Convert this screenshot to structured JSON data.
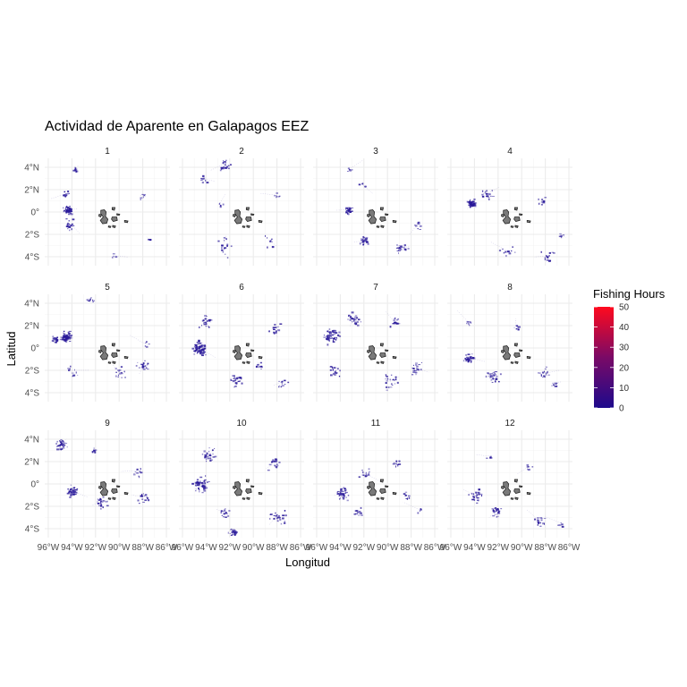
{
  "chart_data": {
    "type": "heatmap",
    "title": "Actividad de Aparente en Galapagos EEZ",
    "xlabel": "Longitud",
    "ylabel": "Latitud",
    "facet_labels": [
      "1",
      "2",
      "3",
      "4",
      "5",
      "6",
      "7",
      "8",
      "9",
      "10",
      "11",
      "12"
    ],
    "x_ticks": [
      {
        "value": -96,
        "label": "96°W"
      },
      {
        "value": -94,
        "label": "94°W"
      },
      {
        "value": -92,
        "label": "92°W"
      },
      {
        "value": -90,
        "label": "90°W"
      },
      {
        "value": -88,
        "label": "88°W"
      },
      {
        "value": -86,
        "label": "86°W"
      }
    ],
    "y_ticks": [
      {
        "value": 4,
        "label": "4°N"
      },
      {
        "value": 2,
        "label": "2°N"
      },
      {
        "value": 0,
        "label": "0°"
      },
      {
        "value": -2,
        "label": "2°S"
      },
      {
        "value": -4,
        "label": "4°S"
      }
    ],
    "xlim": [
      -96.3,
      -85.7
    ],
    "ylim": [
      -4.8,
      4.8
    ],
    "legend": {
      "title": "Fishing Hours",
      "ticks": [
        0,
        10,
        20,
        30,
        40,
        50
      ],
      "range": [
        0,
        50
      ],
      "color_low": "#1e0a8c",
      "color_high": "#ff0a1e",
      "placement": "right"
    },
    "grid": true,
    "island_fill": "#7a7a7a",
    "island_stroke": "#1a1a1a",
    "activity_color": "#2a1a9a",
    "panels": [
      {
        "label": "1",
        "clusters": [
          [
            -94.4,
            0.2,
            55,
            0.5
          ],
          [
            -93.8,
            3.8,
            12,
            0.3
          ],
          [
            -94.6,
            1.6,
            15,
            0.5
          ],
          [
            -94.2,
            -1.0,
            18,
            0.6
          ],
          [
            -88.2,
            1.5,
            6,
            0.5
          ],
          [
            -87.5,
            -2.4,
            5,
            0.3
          ],
          [
            -90.5,
            -3.9,
            4,
            0.4
          ]
        ]
      },
      {
        "label": "2",
        "clusters": [
          [
            -92.5,
            4.3,
            25,
            0.6
          ],
          [
            -94.3,
            3.0,
            10,
            0.6
          ],
          [
            -92.5,
            -3.0,
            15,
            1.2
          ],
          [
            -88.0,
            1.5,
            6,
            0.5
          ],
          [
            -88.7,
            -2.5,
            8,
            0.8
          ],
          [
            -92.8,
            0.8,
            5,
            0.4
          ]
        ]
      },
      {
        "label": "3",
        "clusters": [
          [
            -93.3,
            0.2,
            30,
            0.5
          ],
          [
            -92.0,
            -2.6,
            25,
            0.6
          ],
          [
            -89.0,
            -3.2,
            20,
            0.8
          ],
          [
            -92.2,
            2.5,
            6,
            0.5
          ],
          [
            -87.6,
            -1.3,
            8,
            0.6
          ],
          [
            -93.3,
            3.8,
            5,
            0.3
          ]
        ]
      },
      {
        "label": "4",
        "clusters": [
          [
            -94.3,
            0.8,
            60,
            0.5
          ],
          [
            -93.0,
            1.6,
            20,
            0.7
          ],
          [
            -87.8,
            -3.9,
            15,
            0.7
          ],
          [
            -88.3,
            1.0,
            8,
            0.5
          ],
          [
            -91.2,
            -3.5,
            10,
            0.8
          ],
          [
            -86.8,
            -2.0,
            5,
            0.4
          ]
        ]
      },
      {
        "label": "5",
        "clusters": [
          [
            -94.5,
            1.0,
            90,
            0.6
          ],
          [
            -95.5,
            0.8,
            20,
            0.4
          ],
          [
            -92.5,
            4.3,
            12,
            0.4
          ],
          [
            -88.0,
            -1.7,
            20,
            1.0
          ],
          [
            -90.0,
            -2.2,
            15,
            0.8
          ],
          [
            -94.0,
            -2.0,
            10,
            0.8
          ],
          [
            -87.7,
            0.3,
            5,
            0.4
          ]
        ]
      },
      {
        "label": "6",
        "clusters": [
          [
            -94.6,
            0.0,
            80,
            0.8
          ],
          [
            -94.0,
            2.5,
            25,
            0.8
          ],
          [
            -91.5,
            -2.8,
            25,
            0.9
          ],
          [
            -88.3,
            1.8,
            15,
            0.8
          ],
          [
            -87.5,
            -3.0,
            12,
            0.7
          ],
          [
            -89.5,
            -1.5,
            10,
            0.6
          ]
        ]
      },
      {
        "label": "7",
        "clusters": [
          [
            -94.8,
            1.2,
            60,
            0.9
          ],
          [
            -93.0,
            2.6,
            30,
            0.9
          ],
          [
            -89.5,
            2.4,
            15,
            0.8
          ],
          [
            -89.8,
            -3.0,
            25,
            1.0
          ],
          [
            -87.8,
            -1.8,
            20,
            0.8
          ],
          [
            -94.5,
            -2.0,
            20,
            0.8
          ]
        ]
      },
      {
        "label": "8",
        "clusters": [
          [
            -94.5,
            -0.9,
            40,
            0.5
          ],
          [
            -92.5,
            -2.5,
            30,
            0.8
          ],
          [
            -88.2,
            -2.3,
            15,
            0.8
          ],
          [
            -87.3,
            -3.2,
            8,
            0.4
          ],
          [
            -90.5,
            2.0,
            8,
            0.5
          ],
          [
            -94.6,
            2.4,
            6,
            0.4
          ]
        ]
      },
      {
        "label": "9",
        "clusters": [
          [
            -95.0,
            3.5,
            35,
            0.7
          ],
          [
            -94.0,
            -0.6,
            40,
            0.7
          ],
          [
            -91.5,
            -1.5,
            25,
            0.8
          ],
          [
            -88.5,
            1.2,
            10,
            0.6
          ],
          [
            -88.0,
            -1.2,
            15,
            0.8
          ],
          [
            -92.2,
            3.0,
            8,
            0.4
          ]
        ]
      },
      {
        "label": "10",
        "clusters": [
          [
            -94.5,
            0.0,
            60,
            1.0
          ],
          [
            -93.8,
            2.6,
            30,
            0.9
          ],
          [
            -91.8,
            -4.2,
            25,
            0.5
          ],
          [
            -88.0,
            -2.8,
            25,
            1.0
          ],
          [
            -88.2,
            1.8,
            20,
            0.8
          ],
          [
            -92.5,
            -2.5,
            15,
            0.8
          ]
        ]
      },
      {
        "label": "11",
        "clusters": [
          [
            -93.9,
            -0.8,
            45,
            0.7
          ],
          [
            -92.0,
            1.0,
            15,
            0.7
          ],
          [
            -92.5,
            -2.6,
            15,
            0.7
          ],
          [
            -89.3,
            1.8,
            10,
            0.5
          ],
          [
            -88.3,
            -1.0,
            8,
            0.5
          ],
          [
            -87.3,
            -2.3,
            5,
            0.4
          ]
        ]
      },
      {
        "label": "12",
        "clusters": [
          [
            -94.0,
            -1.0,
            30,
            0.7
          ],
          [
            -92.2,
            -2.4,
            25,
            0.7
          ],
          [
            -88.5,
            -3.3,
            15,
            0.7
          ],
          [
            -89.5,
            1.5,
            6,
            0.5
          ],
          [
            -92.8,
            2.5,
            5,
            0.4
          ],
          [
            -86.7,
            -3.5,
            5,
            0.4
          ]
        ]
      }
    ]
  }
}
